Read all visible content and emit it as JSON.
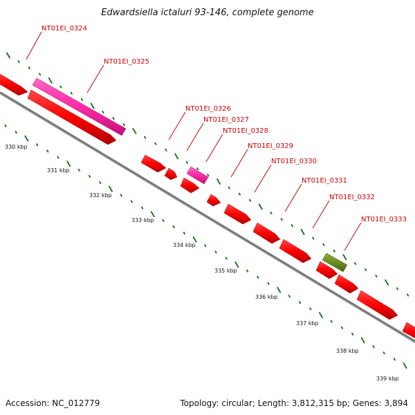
{
  "title": "Edwardsiella ictaluri 93-146, complete genome",
  "footer": {
    "accession": "Accession: NC_012779",
    "summary": "Topology: circular; Length: 3,812,315 bp; Genes: 3,894"
  },
  "colors": {
    "gene_red": "#ff0000",
    "gene_pink": "#ff33aa",
    "gene_olive": "#6b8e23",
    "tick_green": "#1a7a1a",
    "label_red": "#cc0000",
    "backbone": "#808080"
  },
  "genes": [
    {
      "label": "NT01EI_0324"
    },
    {
      "label": "NT01EI_0325"
    },
    {
      "label": "NT01EI_0326"
    },
    {
      "label": "NT01EI_0327"
    },
    {
      "label": "NT01EI_0328"
    },
    {
      "label": "NT01EI_0329"
    },
    {
      "label": "NT01EI_0330"
    },
    {
      "label": "NT01EI_0331"
    },
    {
      "label": "NT01EI_0332"
    },
    {
      "label": "NT01EI_0333"
    }
  ],
  "kbp_labels": [
    "330 kbp",
    "331 kbp",
    "332 kbp",
    "333 kbp",
    "334 kbp",
    "335 kbp",
    "336 kbp",
    "337 kbp",
    "338 kbp",
    "339 kbp"
  ]
}
